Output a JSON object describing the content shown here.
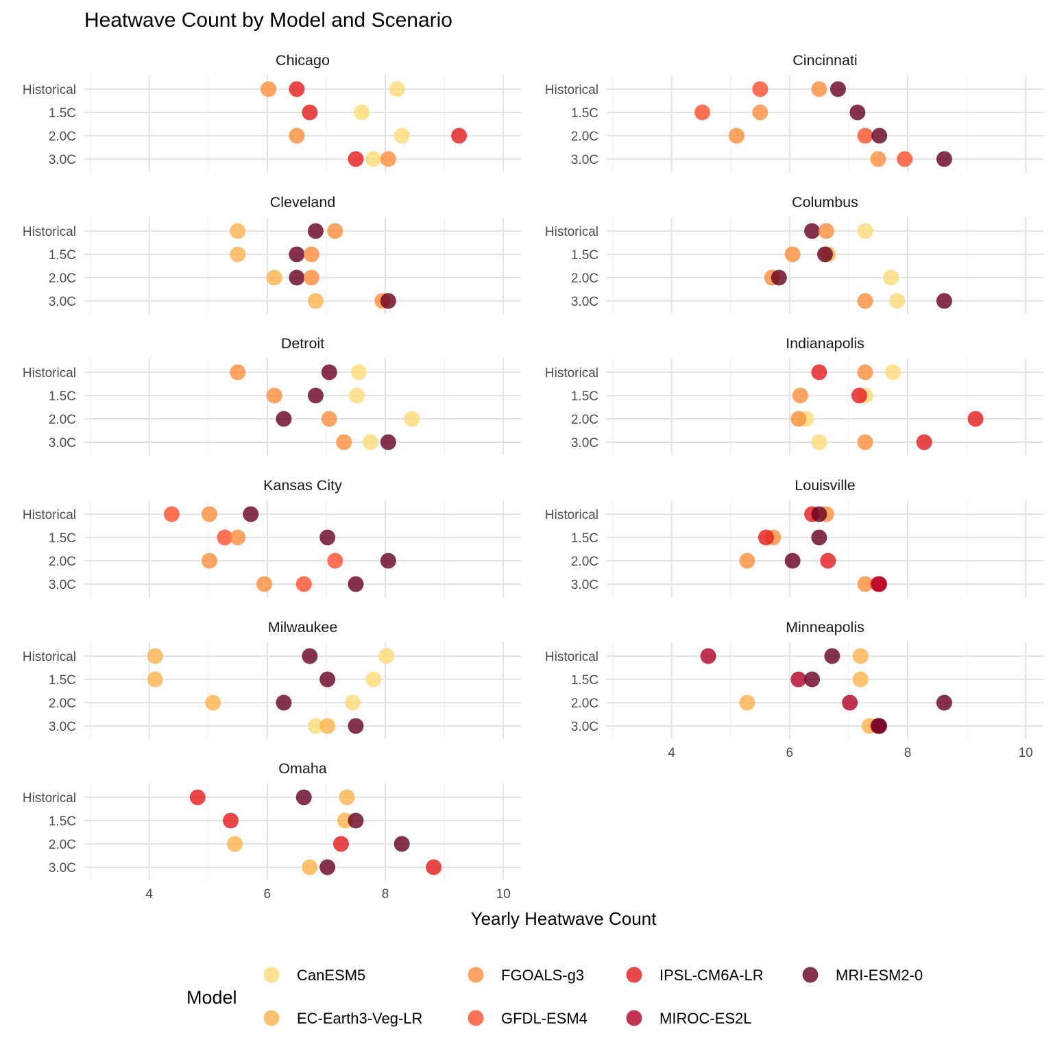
{
  "chart_data": {
    "type": "scatter",
    "title": "Heatwave Count by Model and Scenario",
    "xlabel": "Yearly Heatwave Count",
    "ylabel": "",
    "xlim": [
      2.9,
      10.3
    ],
    "xticks": [
      4,
      6,
      8,
      10
    ],
    "scenarios": [
      "Historical",
      "1.5C",
      "2.0C",
      "3.0C"
    ],
    "grid": true,
    "legend_position": "bottom",
    "legend_title": "Model",
    "models": [
      {
        "name": "CanESM5",
        "color": "#FED976"
      },
      {
        "name": "EC-Earth3-Veg-LR",
        "color": "#FEB24C"
      },
      {
        "name": "FGOALS-g3",
        "color": "#FD8D3C"
      },
      {
        "name": "GFDL-ESM4",
        "color": "#FC4E2A"
      },
      {
        "name": "IPSL-CM6A-LR",
        "color": "#E31A1C"
      },
      {
        "name": "MIROC-ES2L",
        "color": "#B10026"
      },
      {
        "name": "MRI-ESM2-0",
        "color": "#67001F"
      }
    ],
    "panels": [
      {
        "city": "Chicago",
        "points": [
          {
            "scenario": "Historical",
            "model": "FGOALS-g3",
            "x": 6.02
          },
          {
            "scenario": "Historical",
            "model": "IPSL-CM6A-LR",
            "x": 6.5
          },
          {
            "scenario": "Historical",
            "model": "CanESM5",
            "x": 8.2
          },
          {
            "scenario": "1.5C",
            "model": "IPSL-CM6A-LR",
            "x": 6.72
          },
          {
            "scenario": "1.5C",
            "model": "CanESM5",
            "x": 7.6
          },
          {
            "scenario": "2.0C",
            "model": "FGOALS-g3",
            "x": 6.5
          },
          {
            "scenario": "2.0C",
            "model": "CanESM5",
            "x": 8.28
          },
          {
            "scenario": "2.0C",
            "model": "IPSL-CM6A-LR",
            "x": 9.25
          },
          {
            "scenario": "3.0C",
            "model": "IPSL-CM6A-LR",
            "x": 7.5
          },
          {
            "scenario": "3.0C",
            "model": "CanESM5",
            "x": 7.8
          },
          {
            "scenario": "3.0C",
            "model": "FGOALS-g3",
            "x": 8.05
          }
        ]
      },
      {
        "city": "Cincinnati",
        "points": [
          {
            "scenario": "Historical",
            "model": "GFDL-ESM4",
            "x": 5.5
          },
          {
            "scenario": "Historical",
            "model": "FGOALS-g3",
            "x": 6.5
          },
          {
            "scenario": "Historical",
            "model": "MRI-ESM2-0",
            "x": 6.82
          },
          {
            "scenario": "1.5C",
            "model": "GFDL-ESM4",
            "x": 4.52
          },
          {
            "scenario": "1.5C",
            "model": "FGOALS-g3",
            "x": 5.5
          },
          {
            "scenario": "1.5C",
            "model": "MRI-ESM2-0",
            "x": 7.15
          },
          {
            "scenario": "2.0C",
            "model": "FGOALS-g3",
            "x": 5.1
          },
          {
            "scenario": "2.0C",
            "model": "GFDL-ESM4",
            "x": 7.28
          },
          {
            "scenario": "2.0C",
            "model": "MRI-ESM2-0",
            "x": 7.52
          },
          {
            "scenario": "3.0C",
            "model": "FGOALS-g3",
            "x": 7.5
          },
          {
            "scenario": "3.0C",
            "model": "GFDL-ESM4",
            "x": 7.95
          },
          {
            "scenario": "3.0C",
            "model": "MRI-ESM2-0",
            "x": 8.62
          }
        ]
      },
      {
        "city": "Cleveland",
        "points": [
          {
            "scenario": "Historical",
            "model": "EC-Earth3-Veg-LR",
            "x": 5.5
          },
          {
            "scenario": "Historical",
            "model": "MRI-ESM2-0",
            "x": 6.82
          },
          {
            "scenario": "Historical",
            "model": "FGOALS-g3",
            "x": 7.15
          },
          {
            "scenario": "1.5C",
            "model": "EC-Earth3-Veg-LR",
            "x": 5.5
          },
          {
            "scenario": "1.5C",
            "model": "MRI-ESM2-0",
            "x": 6.5
          },
          {
            "scenario": "1.5C",
            "model": "FGOALS-g3",
            "x": 6.75
          },
          {
            "scenario": "2.0C",
            "model": "EC-Earth3-Veg-LR",
            "x": 6.12
          },
          {
            "scenario": "2.0C",
            "model": "MRI-ESM2-0",
            "x": 6.5
          },
          {
            "scenario": "2.0C",
            "model": "FGOALS-g3",
            "x": 6.75
          },
          {
            "scenario": "3.0C",
            "model": "EC-Earth3-Veg-LR",
            "x": 6.82
          },
          {
            "scenario": "3.0C",
            "model": "FGOALS-g3",
            "x": 7.95
          },
          {
            "scenario": "3.0C",
            "model": "MRI-ESM2-0",
            "x": 8.05
          }
        ]
      },
      {
        "city": "Columbus",
        "points": [
          {
            "scenario": "Historical",
            "model": "MRI-ESM2-0",
            "x": 6.38
          },
          {
            "scenario": "Historical",
            "model": "FGOALS-g3",
            "x": 6.62
          },
          {
            "scenario": "Historical",
            "model": "CanESM5",
            "x": 7.28
          },
          {
            "scenario": "1.5C",
            "model": "FGOALS-g3",
            "x": 6.05
          },
          {
            "scenario": "1.5C",
            "model": "EC-Earth3-Veg-LR",
            "x": 6.65
          },
          {
            "scenario": "1.5C",
            "model": "MRI-ESM2-0",
            "x": 6.6
          },
          {
            "scenario": "2.0C",
            "model": "FGOALS-g3",
            "x": 5.7
          },
          {
            "scenario": "2.0C",
            "model": "MRI-ESM2-0",
            "x": 5.82
          },
          {
            "scenario": "2.0C",
            "model": "CanESM5",
            "x": 7.72
          },
          {
            "scenario": "3.0C",
            "model": "FGOALS-g3",
            "x": 7.28
          },
          {
            "scenario": "3.0C",
            "model": "CanESM5",
            "x": 7.82
          },
          {
            "scenario": "3.0C",
            "model": "MRI-ESM2-0",
            "x": 8.62
          }
        ]
      },
      {
        "city": "Detroit",
        "points": [
          {
            "scenario": "Historical",
            "model": "FGOALS-g3",
            "x": 5.5
          },
          {
            "scenario": "Historical",
            "model": "MRI-ESM2-0",
            "x": 7.05
          },
          {
            "scenario": "Historical",
            "model": "CanESM5",
            "x": 7.55
          },
          {
            "scenario": "1.5C",
            "model": "FGOALS-g3",
            "x": 6.12
          },
          {
            "scenario": "1.5C",
            "model": "MRI-ESM2-0",
            "x": 6.82
          },
          {
            "scenario": "1.5C",
            "model": "CanESM5",
            "x": 7.52
          },
          {
            "scenario": "2.0C",
            "model": "MRI-ESM2-0",
            "x": 6.28
          },
          {
            "scenario": "2.0C",
            "model": "FGOALS-g3",
            "x": 7.05
          },
          {
            "scenario": "2.0C",
            "model": "CanESM5",
            "x": 8.45
          },
          {
            "scenario": "3.0C",
            "model": "FGOALS-g3",
            "x": 7.3
          },
          {
            "scenario": "3.0C",
            "model": "CanESM5",
            "x": 7.75
          },
          {
            "scenario": "3.0C",
            "model": "MRI-ESM2-0",
            "x": 8.05
          }
        ]
      },
      {
        "city": "Indianapolis",
        "points": [
          {
            "scenario": "Historical",
            "model": "IPSL-CM6A-LR",
            "x": 6.5
          },
          {
            "scenario": "Historical",
            "model": "FGOALS-g3",
            "x": 7.28
          },
          {
            "scenario": "Historical",
            "model": "CanESM5",
            "x": 7.75
          },
          {
            "scenario": "1.5C",
            "model": "FGOALS-g3",
            "x": 6.18
          },
          {
            "scenario": "1.5C",
            "model": "CanESM5",
            "x": 7.28
          },
          {
            "scenario": "1.5C",
            "model": "IPSL-CM6A-LR",
            "x": 7.18
          },
          {
            "scenario": "2.0C",
            "model": "CanESM5",
            "x": 6.28
          },
          {
            "scenario": "2.0C",
            "model": "FGOALS-g3",
            "x": 6.15
          },
          {
            "scenario": "2.0C",
            "model": "IPSL-CM6A-LR",
            "x": 9.15
          },
          {
            "scenario": "3.0C",
            "model": "CanESM5",
            "x": 6.5
          },
          {
            "scenario": "3.0C",
            "model": "FGOALS-g3",
            "x": 7.28
          },
          {
            "scenario": "3.0C",
            "model": "IPSL-CM6A-LR",
            "x": 8.28
          }
        ]
      },
      {
        "city": "Kansas City",
        "points": [
          {
            "scenario": "Historical",
            "model": "GFDL-ESM4",
            "x": 4.38
          },
          {
            "scenario": "Historical",
            "model": "FGOALS-g3",
            "x": 5.02
          },
          {
            "scenario": "Historical",
            "model": "MRI-ESM2-0",
            "x": 5.72
          },
          {
            "scenario": "1.5C",
            "model": "GFDL-ESM4",
            "x": 5.28
          },
          {
            "scenario": "1.5C",
            "model": "FGOALS-g3",
            "x": 5.5
          },
          {
            "scenario": "1.5C",
            "model": "MRI-ESM2-0",
            "x": 7.02
          },
          {
            "scenario": "2.0C",
            "model": "FGOALS-g3",
            "x": 5.02
          },
          {
            "scenario": "2.0C",
            "model": "GFDL-ESM4",
            "x": 7.15
          },
          {
            "scenario": "2.0C",
            "model": "MRI-ESM2-0",
            "x": 8.05
          },
          {
            "scenario": "3.0C",
            "model": "FGOALS-g3",
            "x": 5.95
          },
          {
            "scenario": "3.0C",
            "model": "GFDL-ESM4",
            "x": 6.62
          },
          {
            "scenario": "3.0C",
            "model": "MRI-ESM2-0",
            "x": 7.5
          }
        ]
      },
      {
        "city": "Louisville",
        "points": [
          {
            "scenario": "Historical",
            "model": "IPSL-CM6A-LR",
            "x": 6.38
          },
          {
            "scenario": "Historical",
            "model": "FGOALS-g3",
            "x": 6.62
          },
          {
            "scenario": "Historical",
            "model": "MRI-ESM2-0",
            "x": 6.5
          },
          {
            "scenario": "1.5C",
            "model": "FGOALS-g3",
            "x": 5.72
          },
          {
            "scenario": "1.5C",
            "model": "IPSL-CM6A-LR",
            "x": 5.6
          },
          {
            "scenario": "1.5C",
            "model": "MRI-ESM2-0",
            "x": 6.5
          },
          {
            "scenario": "2.0C",
            "model": "FGOALS-g3",
            "x": 5.28
          },
          {
            "scenario": "2.0C",
            "model": "MRI-ESM2-0",
            "x": 6.05
          },
          {
            "scenario": "2.0C",
            "model": "IPSL-CM6A-LR",
            "x": 6.65
          },
          {
            "scenario": "3.0C",
            "model": "FGOALS-g3",
            "x": 7.28
          },
          {
            "scenario": "3.0C",
            "model": "IPSL-CM6A-LR",
            "x": 7.5
          },
          {
            "scenario": "3.0C",
            "model": "MIROC-ES2L",
            "x": 7.52
          }
        ]
      },
      {
        "city": "Milwaukee",
        "points": [
          {
            "scenario": "Historical",
            "model": "EC-Earth3-Veg-LR",
            "x": 4.1
          },
          {
            "scenario": "Historical",
            "model": "MRI-ESM2-0",
            "x": 6.72
          },
          {
            "scenario": "Historical",
            "model": "CanESM5",
            "x": 8.02
          },
          {
            "scenario": "1.5C",
            "model": "EC-Earth3-Veg-LR",
            "x": 4.1
          },
          {
            "scenario": "1.5C",
            "model": "MRI-ESM2-0",
            "x": 7.02
          },
          {
            "scenario": "1.5C",
            "model": "CanESM5",
            "x": 7.8
          },
          {
            "scenario": "2.0C",
            "model": "EC-Earth3-Veg-LR",
            "x": 5.08
          },
          {
            "scenario": "2.0C",
            "model": "MRI-ESM2-0",
            "x": 6.28
          },
          {
            "scenario": "2.0C",
            "model": "CanESM5",
            "x": 7.45
          },
          {
            "scenario": "3.0C",
            "model": "CanESM5",
            "x": 6.82
          },
          {
            "scenario": "3.0C",
            "model": "EC-Earth3-Veg-LR",
            "x": 7.02
          },
          {
            "scenario": "3.0C",
            "model": "MRI-ESM2-0",
            "x": 7.5
          }
        ]
      },
      {
        "city": "Minneapolis",
        "points": [
          {
            "scenario": "Historical",
            "model": "MIROC-ES2L",
            "x": 4.62
          },
          {
            "scenario": "Historical",
            "model": "MRI-ESM2-0",
            "x": 6.72
          },
          {
            "scenario": "Historical",
            "model": "EC-Earth3-Veg-LR",
            "x": 7.2
          },
          {
            "scenario": "1.5C",
            "model": "MIROC-ES2L",
            "x": 6.15
          },
          {
            "scenario": "1.5C",
            "model": "MRI-ESM2-0",
            "x": 6.38
          },
          {
            "scenario": "1.5C",
            "model": "EC-Earth3-Veg-LR",
            "x": 7.2
          },
          {
            "scenario": "2.0C",
            "model": "EC-Earth3-Veg-LR",
            "x": 5.28
          },
          {
            "scenario": "2.0C",
            "model": "MIROC-ES2L",
            "x": 7.02
          },
          {
            "scenario": "2.0C",
            "model": "MRI-ESM2-0",
            "x": 8.62
          },
          {
            "scenario": "3.0C",
            "model": "EC-Earth3-Veg-LR",
            "x": 7.35
          },
          {
            "scenario": "3.0C",
            "model": "MIROC-ES2L",
            "x": 7.5
          },
          {
            "scenario": "3.0C",
            "model": "MRI-ESM2-0",
            "x": 7.52
          }
        ]
      },
      {
        "city": "Omaha",
        "points": [
          {
            "scenario": "Historical",
            "model": "IPSL-CM6A-LR",
            "x": 4.82
          },
          {
            "scenario": "Historical",
            "model": "MRI-ESM2-0",
            "x": 6.62
          },
          {
            "scenario": "Historical",
            "model": "EC-Earth3-Veg-LR",
            "x": 7.35
          },
          {
            "scenario": "1.5C",
            "model": "IPSL-CM6A-LR",
            "x": 5.38
          },
          {
            "scenario": "1.5C",
            "model": "EC-Earth3-Veg-LR",
            "x": 7.32
          },
          {
            "scenario": "1.5C",
            "model": "MRI-ESM2-0",
            "x": 7.5
          },
          {
            "scenario": "2.0C",
            "model": "EC-Earth3-Veg-LR",
            "x": 5.45
          },
          {
            "scenario": "2.0C",
            "model": "IPSL-CM6A-LR",
            "x": 7.25
          },
          {
            "scenario": "2.0C",
            "model": "MRI-ESM2-0",
            "x": 8.28
          },
          {
            "scenario": "3.0C",
            "model": "EC-Earth3-Veg-LR",
            "x": 6.72
          },
          {
            "scenario": "3.0C",
            "model": "MRI-ESM2-0",
            "x": 7.02
          },
          {
            "scenario": "3.0C",
            "model": "IPSL-CM6A-LR",
            "x": 8.82
          }
        ]
      }
    ]
  }
}
